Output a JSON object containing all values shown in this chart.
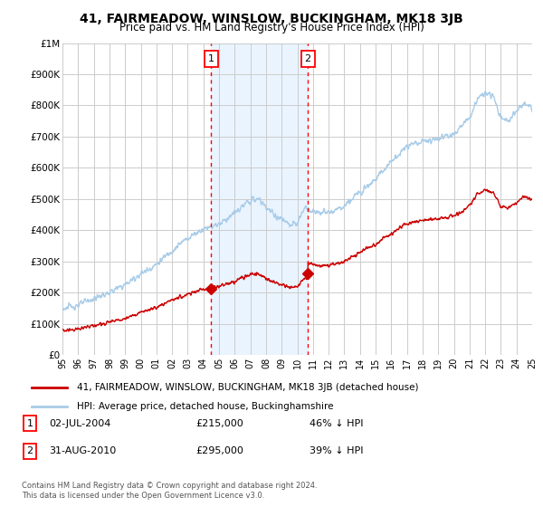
{
  "title": "41, FAIRMEADOW, WINSLOW, BUCKINGHAM, MK18 3JB",
  "subtitle": "Price paid vs. HM Land Registry's House Price Index (HPI)",
  "background_color": "#ffffff",
  "plot_bg_color": "#ffffff",
  "grid_color": "#cccccc",
  "hpi_color": "#a8cce8",
  "price_color": "#cc0000",
  "shade_color": "#ddeeff",
  "marker1_x": 2004.5,
  "marker2_x": 2010.67,
  "p1": 215000,
  "p2": 295000,
  "transaction1": {
    "label": "1",
    "date": "02-JUL-2004",
    "price": "£215,000",
    "hpi_rel": "46% ↓ HPI"
  },
  "transaction2": {
    "label": "2",
    "date": "31-AUG-2010",
    "price": "£295,000",
    "hpi_rel": "39% ↓ HPI"
  },
  "legend1": "41, FAIRMEADOW, WINSLOW, BUCKINGHAM, MK18 3JB (detached house)",
  "legend2": "HPI: Average price, detached house, Buckinghamshire",
  "footnote": "Contains HM Land Registry data © Crown copyright and database right 2024.\nThis data is licensed under the Open Government Licence v3.0.",
  "ylim": [
    0,
    1000000
  ],
  "yticks": [
    0,
    100000,
    200000,
    300000,
    400000,
    500000,
    600000,
    700000,
    800000,
    900000,
    1000000
  ],
  "ytick_labels": [
    "£0",
    "£100K",
    "£200K",
    "£300K",
    "£400K",
    "£500K",
    "£600K",
    "£700K",
    "£800K",
    "£900K",
    "£1M"
  ],
  "xmin": 1995,
  "xmax": 2025,
  "xtick_labels": [
    "95",
    "96",
    "97",
    "98",
    "99",
    "00",
    "01",
    "02",
    "03",
    "04",
    "05",
    "06",
    "07",
    "08",
    "09",
    "10",
    "11",
    "12",
    "13",
    "14",
    "15",
    "16",
    "17",
    "18",
    "19",
    "20",
    "21",
    "22",
    "23",
    "24",
    "25"
  ]
}
